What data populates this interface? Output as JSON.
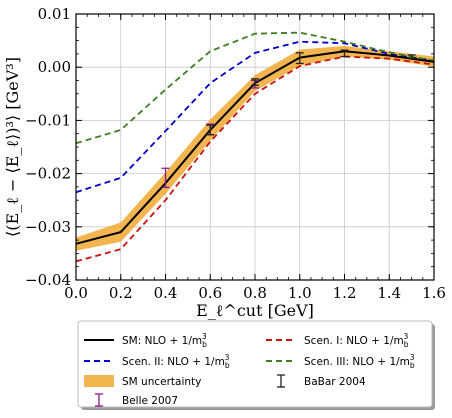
{
  "chart_data": {
    "type": "line",
    "title": "",
    "xlabel": "E_ℓ^cut [GeV]",
    "ylabel": "⟨(E_ℓ − ⟨E_ℓ⟩)³⟩ [GeV³]",
    "xlim": [
      0.0,
      1.6
    ],
    "ylim": [
      -0.04,
      0.01
    ],
    "xticks": [
      0.0,
      0.2,
      0.4,
      0.6,
      0.8,
      1.0,
      1.2,
      1.4,
      1.6
    ],
    "yticks": [
      -0.04,
      -0.03,
      -0.02,
      -0.01,
      0.0,
      0.01
    ],
    "xtick_labels": [
      "0.0",
      "0.2",
      "0.4",
      "0.6",
      "0.8",
      "1.0",
      "1.2",
      "1.4",
      "1.6"
    ],
    "ytick_labels": [
      "−0.04",
      "−0.03",
      "−0.02",
      "−0.01",
      "0.00",
      "0.01"
    ],
    "grid": true,
    "legend_placement": "bottom-outside",
    "x": [
      0.0,
      0.2,
      0.4,
      0.6,
      0.8,
      1.0,
      1.2,
      1.4,
      1.6
    ],
    "series": [
      {
        "name": "SM: NLO + 1/m_b^3",
        "color": "#000000",
        "style": "solid",
        "values": [
          -0.0332,
          -0.031,
          -0.0218,
          -0.0118,
          -0.003,
          0.0018,
          0.003,
          0.0022,
          0.001
        ]
      },
      {
        "name": "Scen. I: NLO + 1/m_b^3",
        "color": "#cc1111",
        "style": "dashed",
        "values": [
          -0.0365,
          -0.0342,
          -0.025,
          -0.014,
          -0.005,
          0.0002,
          0.002,
          0.0016,
          0.0005
        ]
      },
      {
        "name": "Scen. II: NLO + 1/m_b^3",
        "color": "#0000cc",
        "style": "dashed",
        "values": [
          -0.0235,
          -0.0208,
          -0.012,
          -0.003,
          0.0027,
          0.0048,
          0.0045,
          0.0025,
          0.0012
        ]
      },
      {
        "name": "Scen. III: NLO + 1/m_b^3",
        "color": "#3f7d20",
        "style": "dashed",
        "values": [
          -0.0143,
          -0.0118,
          -0.0042,
          0.003,
          0.0063,
          0.0065,
          0.0048,
          0.0028,
          0.0012
        ]
      }
    ],
    "band": {
      "name": "SM uncertainty",
      "color": "#f0a830",
      "upper": [
        -0.032,
        -0.0292,
        -0.0198,
        -0.0098,
        -0.0015,
        0.0033,
        0.004,
        0.003,
        0.002
      ],
      "lower": [
        -0.0345,
        -0.0328,
        -0.0238,
        -0.0138,
        -0.0045,
        0.0003,
        0.002,
        0.0014,
        0.0001
      ]
    },
    "points": [
      {
        "name": "Belle 2007",
        "color": "#8b1a8b",
        "data": [
          {
            "x": 0.4,
            "y": -0.0208,
            "err": 0.0018
          },
          {
            "x": 0.6,
            "y": -0.0117,
            "err": 0.001
          },
          {
            "x": 0.8,
            "y": -0.0032,
            "err": 0.0007
          }
        ]
      },
      {
        "name": "BaBar 2004",
        "color": "#222222",
        "data": [
          {
            "x": 0.6,
            "y": -0.0118,
            "err": 0.0009
          },
          {
            "x": 0.8,
            "y": -0.0028,
            "err": 0.0006
          },
          {
            "x": 1.0,
            "y": 0.0017,
            "err": 0.001
          },
          {
            "x": 1.2,
            "y": 0.0026,
            "err": 0.0006
          },
          {
            "x": 1.5,
            "y": 0.002,
            "err": 0.0003
          }
        ]
      }
    ]
  },
  "legend": {
    "items": [
      {
        "label": "SM: NLO + 1/m",
        "sub": "b",
        "sup": "3",
        "kind": "line",
        "series": 0
      },
      {
        "label": "Scen. I: NLO + 1/m",
        "sub": "b",
        "sup": "3",
        "kind": "line",
        "series": 1
      },
      {
        "label": "Scen. II: NLO + 1/m",
        "sub": "b",
        "sup": "3",
        "kind": "line",
        "series": 2
      },
      {
        "label": "Scen. III: NLO + 1/m",
        "sub": "b",
        "sup": "3",
        "kind": "line",
        "series": 3
      },
      {
        "label": "SM uncertainty",
        "sub": "",
        "sup": "",
        "kind": "band"
      },
      {
        "label": "BaBar 2004",
        "sub": "",
        "sup": "",
        "kind": "err",
        "points": 1
      },
      {
        "label": "Belle 2007",
        "sub": "",
        "sup": "",
        "kind": "err",
        "points": 0
      }
    ]
  }
}
